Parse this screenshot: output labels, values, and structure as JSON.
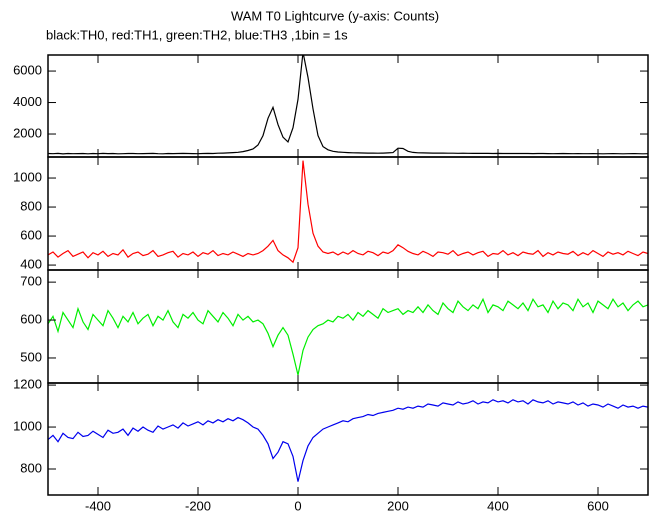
{
  "chart_data": {
    "type": "line",
    "title": "WAM T0 Lightcurve (y-axis: Counts)",
    "subtitle": "black:TH0, red:TH1, green:TH2, blue:TH3 ,1bin = 1s",
    "x": [
      -500,
      -490,
      -480,
      -470,
      -460,
      -450,
      -440,
      -430,
      -420,
      -410,
      -400,
      -390,
      -380,
      -370,
      -360,
      -350,
      -340,
      -330,
      -320,
      -310,
      -300,
      -290,
      -280,
      -270,
      -260,
      -250,
      -240,
      -230,
      -220,
      -210,
      -200,
      -190,
      -180,
      -170,
      -160,
      -150,
      -140,
      -130,
      -120,
      -110,
      -100,
      -90,
      -80,
      -70,
      -60,
      -50,
      -40,
      -30,
      -20,
      -10,
      0,
      10,
      20,
      30,
      40,
      50,
      60,
      70,
      80,
      90,
      100,
      110,
      120,
      130,
      140,
      150,
      160,
      170,
      180,
      190,
      200,
      210,
      220,
      230,
      240,
      250,
      260,
      270,
      280,
      290,
      300,
      310,
      320,
      330,
      340,
      350,
      360,
      370,
      380,
      390,
      400,
      410,
      420,
      430,
      440,
      450,
      460,
      470,
      480,
      490,
      500,
      510,
      520,
      530,
      540,
      550,
      560,
      570,
      580,
      590,
      600,
      610,
      620,
      630,
      640,
      650,
      660,
      670,
      680,
      690,
      700
    ],
    "xlim": [
      -500,
      700
    ],
    "xticks": [
      -400,
      -200,
      0,
      200,
      400,
      600
    ],
    "panels": [
      {
        "ylim": [
          540,
          7020
        ],
        "yticks": [
          2000,
          4000,
          6000
        ],
        "series": [
          {
            "color": "#000000",
            "values": [
              760,
              750,
              770,
              740,
              760,
              750,
              755,
              765,
              745,
              760,
              750,
              770,
              755,
              760,
              745,
              750,
              765,
              760,
              750,
              755,
              760,
              770,
              750,
              745,
              760,
              755,
              765,
              770,
              760,
              755,
              750,
              765,
              770,
              760,
              780,
              790,
              800,
              820,
              840,
              880,
              950,
              1050,
              1300,
              1900,
              3000,
              3700,
              2600,
              1800,
              1500,
              2400,
              4200,
              7200,
              5600,
              3600,
              1900,
              1200,
              1000,
              900,
              860,
              840,
              820,
              810,
              800,
              795,
              790,
              785,
              780,
              790,
              800,
              820,
              1100,
              1080,
              900,
              830,
              810,
              800,
              795,
              790,
              790,
              785,
              780,
              780,
              775,
              780,
              775,
              770,
              775,
              770,
              770,
              765,
              770,
              765,
              760,
              765,
              760,
              765,
              760,
              755,
              760,
              760,
              755,
              750,
              755,
              760,
              755,
              750,
              755,
              750,
              750,
              755,
              750,
              745,
              750,
              755,
              750,
              745,
              750,
              755,
              750,
              745,
              750
            ]
          }
        ]
      },
      {
        "ylim": [
          366,
          1145
        ],
        "yticks": [
          400,
          600,
          800,
          1000
        ],
        "series": [
          {
            "color": "#ff0000",
            "values": [
              470,
              490,
              455,
              480,
              500,
              460,
              475,
              490,
              450,
              485,
              470,
              495,
              460,
              480,
              470,
              505,
              455,
              480,
              490,
              465,
              475,
              500,
              460,
              470,
              485,
              495,
              455,
              480,
              470,
              490,
              460,
              485,
              475,
              500,
              465,
              480,
              470,
              490,
              475,
              460,
              480,
              470,
              480,
              500,
              530,
              570,
              500,
              470,
              450,
              420,
              520,
              1120,
              820,
              620,
              530,
              490,
              480,
              490,
              470,
              490,
              475,
              500,
              480,
              470,
              495,
              485,
              465,
              490,
              480,
              500,
              540,
              520,
              495,
              480,
              470,
              495,
              480,
              460,
              490,
              485,
              475,
              500,
              465,
              480,
              490,
              470,
              485,
              495,
              460,
              480,
              475,
              500,
              470,
              485,
              465,
              490,
              480,
              475,
              500,
              460,
              485,
              470,
              490,
              480,
              475,
              495,
              465,
              485,
              470,
              500,
              480,
              460,
              490,
              475,
              485,
              470,
              495,
              480,
              465,
              490,
              480
            ]
          }
        ]
      },
      {
        "ylim": [
          434,
          732
        ],
        "yticks": [
          500,
          600,
          700
        ],
        "series": [
          {
            "color": "#00ee00",
            "values": [
              590,
              610,
              570,
              620,
              600,
              580,
              630,
              595,
              575,
              615,
              600,
              585,
              625,
              605,
              580,
              610,
              595,
              620,
              590,
              605,
              615,
              585,
              610,
              600,
              625,
              595,
              580,
              615,
              605,
              620,
              600,
              590,
              625,
              610,
              595,
              620,
              605,
              585,
              615,
              600,
              610,
              595,
              600,
              590,
              565,
              530,
              560,
              580,
              560,
              510,
              455,
              520,
              555,
              575,
              585,
              590,
              600,
              595,
              610,
              605,
              615,
              600,
              620,
              610,
              625,
              615,
              605,
              630,
              620,
              625,
              630,
              615,
              625,
              620,
              635,
              620,
              640,
              625,
              615,
              645,
              630,
              620,
              650,
              635,
              625,
              640,
              630,
              655,
              620,
              640,
              635,
              625,
              650,
              640,
              630,
              645,
              625,
              655,
              635,
              640,
              620,
              650,
              630,
              645,
              640,
              625,
              655,
              635,
              645,
              620,
              650,
              640,
              630,
              655,
              635,
              645,
              625,
              640,
              650,
              635,
              640
            ]
          }
        ]
      },
      {
        "ylim": [
          676,
          1210
        ],
        "yticks": [
          800,
          1000,
          1200
        ],
        "series": [
          {
            "color": "#0000ee",
            "values": [
              940,
              960,
              930,
              970,
              950,
              945,
              975,
              955,
              960,
              980,
              965,
              950,
              985,
              970,
              975,
              990,
              960,
              995,
              980,
              1000,
              985,
              975,
              1005,
              990,
              1000,
              1010,
              995,
              1020,
              1005,
              1015,
              1025,
              1010,
              1030,
              1020,
              1035,
              1025,
              1040,
              1030,
              1045,
              1035,
              1020,
              1000,
              990,
              960,
              920,
              850,
              880,
              930,
              920,
              860,
              740,
              840,
              910,
              950,
              970,
              990,
              1000,
              1010,
              1020,
              1030,
              1025,
              1040,
              1045,
              1050,
              1060,
              1055,
              1065,
              1070,
              1075,
              1080,
              1090,
              1085,
              1095,
              1090,
              1100,
              1095,
              1110,
              1105,
              1100,
              1115,
              1110,
              1105,
              1120,
              1110,
              1115,
              1125,
              1110,
              1120,
              1115,
              1130,
              1120,
              1125,
              1115,
              1130,
              1120,
              1125,
              1110,
              1130,
              1120,
              1115,
              1125,
              1110,
              1120,
              1115,
              1110,
              1120,
              1105,
              1115,
              1100,
              1110,
              1105,
              1095,
              1110,
              1100,
              1090,
              1105,
              1095,
              1100,
              1090,
              1100,
              1095
            ]
          }
        ]
      }
    ]
  }
}
